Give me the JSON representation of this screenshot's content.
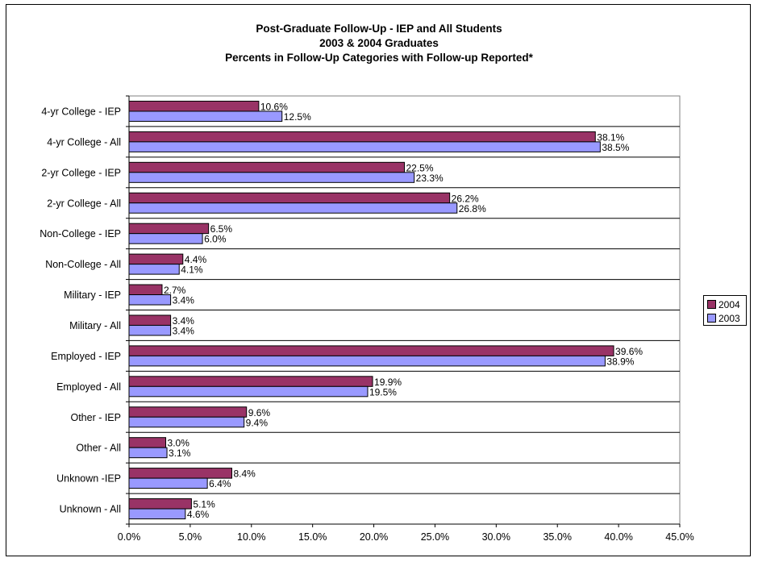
{
  "chart_data": {
    "type": "bar",
    "orientation": "horizontal",
    "title": "Post-Graduate Follow-Up - IEP and All Students",
    "subtitle": "2003 & 2004 Graduates",
    "subtitle2": "Percents in Follow-Up Categories with Follow-up Reported*",
    "categories": [
      "4-yr College - IEP",
      "4-yr College - All",
      "2-yr College - IEP",
      "2-yr College - All",
      "Non-College - IEP",
      "Non-College - All",
      "Military - IEP",
      "Military - All",
      "Employed - IEP",
      "Employed - All",
      "Other - IEP",
      "Other - All",
      "Unknown -IEP",
      "Unknown - All"
    ],
    "series": [
      {
        "name": "2004",
        "color": "#993366",
        "values": [
          10.6,
          38.1,
          22.5,
          26.2,
          6.5,
          4.4,
          2.7,
          3.4,
          39.6,
          19.9,
          9.6,
          3.0,
          8.4,
          5.1
        ],
        "labels": [
          "10.6%",
          "38.1%",
          "22.5%",
          "26.2%",
          "6.5%",
          "4.4%",
          "2.7%",
          "3.4%",
          "39.6%",
          "19.9%",
          "9.6%",
          "3.0%",
          "8.4%",
          "5.1%"
        ]
      },
      {
        "name": "2003",
        "color": "#9999ff",
        "values": [
          12.5,
          38.5,
          23.3,
          26.8,
          6.0,
          4.1,
          3.4,
          3.4,
          38.9,
          19.5,
          9.4,
          3.1,
          6.4,
          4.6
        ],
        "labels": [
          "12.5%",
          "38.5%",
          "23.3%",
          "26.8%",
          "6.0%",
          "4.1%",
          "3.4%",
          "3.4%",
          "38.9%",
          "19.5%",
          "9.4%",
          "3.1%",
          "6.4%",
          "4.6%"
        ]
      }
    ],
    "xlim": [
      0,
      45
    ],
    "xticks": [
      "0.0%",
      "5.0%",
      "10.0%",
      "15.0%",
      "20.0%",
      "25.0%",
      "30.0%",
      "35.0%",
      "40.0%",
      "45.0%"
    ],
    "grid": "horizontal category separators",
    "legend_position": "right"
  }
}
